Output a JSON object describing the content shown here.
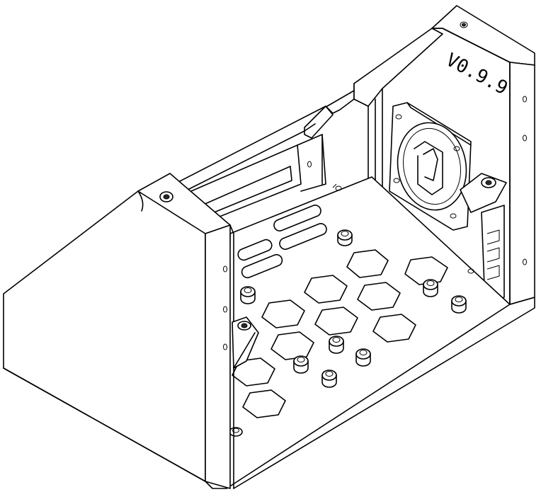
{
  "drawing": {
    "version_label": "V0.9.9",
    "line_color": "#000000",
    "background_color": "#ffffff"
  }
}
